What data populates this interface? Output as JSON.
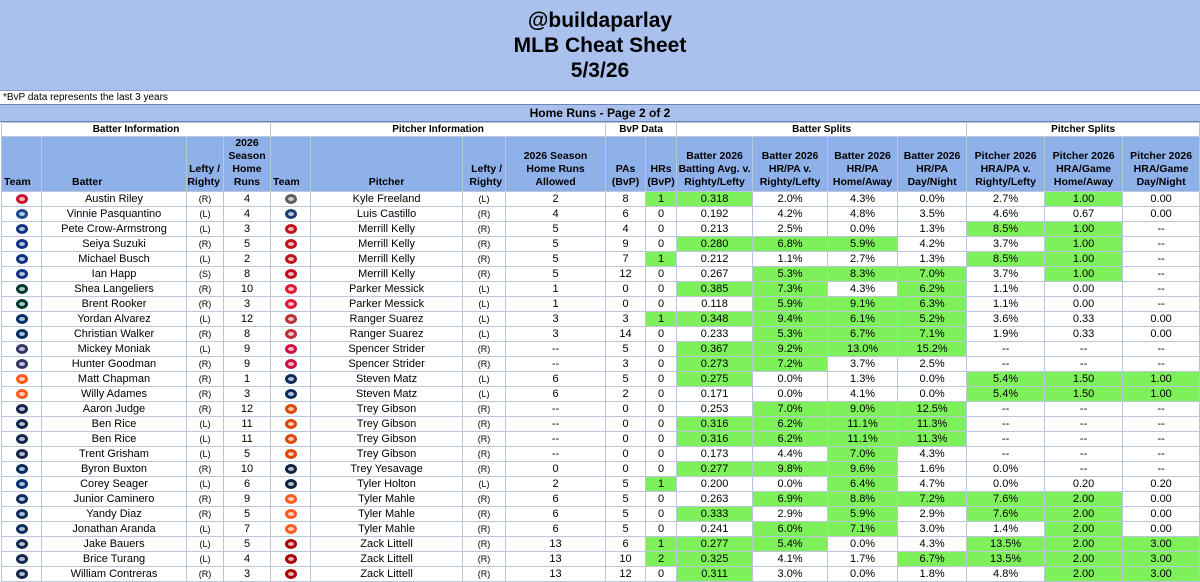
{
  "header": {
    "handle": "@buildaparlay",
    "title": "MLB Cheat Sheet",
    "date": "5/3/26",
    "note": "*BvP data represents the last 3 years",
    "section": "Home Runs - Page 2 of 2"
  },
  "groups": {
    "batter": "Batter Information",
    "pitcher": "Pitcher Information",
    "bvp": "BvP Data",
    "bsplits": "Batter Splits",
    "psplits": "Pitcher Splits"
  },
  "columns": {
    "team": "Team",
    "batter": "Batter",
    "bhand": "Lefty /\nRighty",
    "bhr": "2026 Season\nHome Runs",
    "pteam": "Team",
    "pitcher": "Pitcher",
    "phand": "Lefty /\nRighty",
    "phra": "2026 Season\nHome Runs\nAllowed",
    "pas": "PAs\n(BvP)",
    "hrs": "HRs\n(BvP)",
    "bavg": "Batter 2026\nBatting Avg. v.\nRighty/Lefty",
    "bhrpa": "Batter 2026\nHR/PA v.\nRighty/Lefty",
    "bha": "Batter 2026\nHR/PA\nHome/Away",
    "bdn": "Batter 2026\nHR/PA\nDay/Night",
    "phrapa": "Pitcher 2026\nHRA/PA v.\nRighty/Lefty",
    "pha": "Pitcher 2026\nHRA/Game\nHome/Away",
    "pdn": "Pitcher 2026\nHRA/Game\nDay/Night"
  },
  "colors": {
    "green": "#7ef05a",
    "header_blue": "#a9c1ec",
    "col_blue": "#8fb1ea"
  },
  "rows": [
    {
      "bteam": "#c8102e",
      "batter": "Austin Riley",
      "bh": "(R)",
      "bhr": "4",
      "pteam": "#5e5e5e",
      "pitcher": "Kyle Freeland",
      "ph": "(L)",
      "phr": "2",
      "pa": "8",
      "hr": "1",
      "avg": "0.318",
      "hrpa": "2.0%",
      "ha": "4.3%",
      "dn": "0.0%",
      "phrapa": "2.7%",
      "pha": "1.00",
      "pdn": "0.00",
      "g": [
        "hr",
        "avg",
        "pha"
      ]
    },
    {
      "bteam": "#1a4b8f",
      "batter": "Vinnie Pasquantino",
      "bh": "(L)",
      "bhr": "4",
      "pteam": "#1d3f7a",
      "pitcher": "Luis Castillo",
      "ph": "(R)",
      "phr": "4",
      "pa": "6",
      "hr": "0",
      "avg": "0.192",
      "hrpa": "4.2%",
      "ha": "4.8%",
      "dn": "3.5%",
      "phrapa": "4.6%",
      "pha": "0.67",
      "pdn": "0.00",
      "g": []
    },
    {
      "bteam": "#0e3386",
      "batter": "Pete Crow-Armstrong",
      "bh": "(L)",
      "bhr": "3",
      "pteam": "#c0111f",
      "pitcher": "Merrill Kelly",
      "ph": "(R)",
      "phr": "5",
      "pa": "4",
      "hr": "0",
      "avg": "0.213",
      "hrpa": "2.5%",
      "ha": "0.0%",
      "dn": "1.3%",
      "phrapa": "8.5%",
      "pha": "1.00",
      "pdn": "--",
      "g": [
        "phrapa",
        "pha"
      ]
    },
    {
      "bteam": "#0e3386",
      "batter": "Seiya Suzuki",
      "bh": "(R)",
      "bhr": "5",
      "pteam": "#c0111f",
      "pitcher": "Merrill Kelly",
      "ph": "(R)",
      "phr": "5",
      "pa": "9",
      "hr": "0",
      "avg": "0.280",
      "hrpa": "6.8%",
      "ha": "5.9%",
      "dn": "4.2%",
      "phrapa": "3.7%",
      "pha": "1.00",
      "pdn": "--",
      "g": [
        "avg",
        "hrpa",
        "ha",
        "pha"
      ]
    },
    {
      "bteam": "#0e3386",
      "batter": "Michael Busch",
      "bh": "(L)",
      "bhr": "2",
      "pteam": "#c0111f",
      "pitcher": "Merrill Kelly",
      "ph": "(R)",
      "phr": "5",
      "pa": "7",
      "hr": "1",
      "avg": "0.212",
      "hrpa": "1.1%",
      "ha": "2.7%",
      "dn": "1.3%",
      "phrapa": "8.5%",
      "pha": "1.00",
      "pdn": "--",
      "g": [
        "hr",
        "phrapa",
        "pha"
      ]
    },
    {
      "bteam": "#0e3386",
      "batter": "Ian Happ",
      "bh": "(S)",
      "bhr": "8",
      "pteam": "#c0111f",
      "pitcher": "Merrill Kelly",
      "ph": "(R)",
      "phr": "5",
      "pa": "12",
      "hr": "0",
      "avg": "0.267",
      "hrpa": "5.3%",
      "ha": "8.3%",
      "dn": "7.0%",
      "phrapa": "3.7%",
      "pha": "1.00",
      "pdn": "--",
      "g": [
        "hrpa",
        "ha",
        "dn",
        "pha"
      ]
    },
    {
      "bteam": "#003831",
      "batter": "Shea Langeliers",
      "bh": "(R)",
      "bhr": "10",
      "pteam": "#e31937",
      "pitcher": "Parker Messick",
      "ph": "(L)",
      "phr": "1",
      "pa": "0",
      "hr": "0",
      "avg": "0.385",
      "hrpa": "7.3%",
      "ha": "4.3%",
      "dn": "6.2%",
      "phrapa": "1.1%",
      "pha": "0.00",
      "pdn": "--",
      "g": [
        "avg",
        "hrpa",
        "dn"
      ]
    },
    {
      "bteam": "#003831",
      "batter": "Brent Rooker",
      "bh": "(R)",
      "bhr": "3",
      "pteam": "#e31937",
      "pitcher": "Parker Messick",
      "ph": "(L)",
      "phr": "1",
      "pa": "0",
      "hr": "0",
      "avg": "0.118",
      "hrpa": "5.9%",
      "ha": "9.1%",
      "dn": "6.3%",
      "phrapa": "1.1%",
      "pha": "0.00",
      "pdn": "--",
      "g": [
        "hrpa",
        "ha",
        "dn"
      ]
    },
    {
      "bteam": "#002d62",
      "batter": "Yordan Alvarez",
      "bh": "(L)",
      "bhr": "12",
      "pteam": "#bd3039",
      "pitcher": "Ranger Suarez",
      "ph": "(L)",
      "phr": "3",
      "pa": "3",
      "hr": "1",
      "avg": "0.348",
      "hrpa": "9.4%",
      "ha": "6.1%",
      "dn": "5.2%",
      "phrapa": "3.6%",
      "pha": "0.33",
      "pdn": "0.00",
      "g": [
        "hr",
        "avg",
        "hrpa",
        "ha",
        "dn"
      ]
    },
    {
      "bteam": "#002d62",
      "batter": "Christian Walker",
      "bh": "(R)",
      "bhr": "8",
      "pteam": "#bd3039",
      "pitcher": "Ranger Suarez",
      "ph": "(L)",
      "phr": "3",
      "pa": "14",
      "hr": "0",
      "avg": "0.233",
      "hrpa": "5.3%",
      "ha": "6.7%",
      "dn": "7.1%",
      "phrapa": "1.9%",
      "pha": "0.33",
      "pdn": "0.00",
      "g": [
        "hrpa",
        "ha",
        "dn"
      ]
    },
    {
      "bteam": "#333366",
      "batter": "Mickey Moniak",
      "bh": "(L)",
      "bhr": "9",
      "pteam": "#ce1141",
      "pitcher": "Spencer Strider",
      "ph": "(R)",
      "phr": "--",
      "pa": "5",
      "hr": "0",
      "avg": "0.367",
      "hrpa": "9.2%",
      "ha": "13.0%",
      "dn": "15.2%",
      "phrapa": "--",
      "pha": "--",
      "pdn": "--",
      "g": [
        "avg",
        "hrpa",
        "ha",
        "dn"
      ]
    },
    {
      "bteam": "#333366",
      "batter": "Hunter Goodman",
      "bh": "(R)",
      "bhr": "9",
      "pteam": "#ce1141",
      "pitcher": "Spencer Strider",
      "ph": "(R)",
      "phr": "--",
      "pa": "3",
      "hr": "0",
      "avg": "0.273",
      "hrpa": "7.2%",
      "ha": "3.7%",
      "dn": "2.5%",
      "phrapa": "--",
      "pha": "--",
      "pdn": "--",
      "g": [
        "avg",
        "hrpa"
      ]
    },
    {
      "bteam": "#fd5a1e",
      "batter": "Matt Chapman",
      "bh": "(R)",
      "bhr": "1",
      "pteam": "#092c5c",
      "pitcher": "Steven Matz",
      "ph": "(L)",
      "phr": "6",
      "pa": "5",
      "hr": "0",
      "avg": "0.275",
      "hrpa": "0.0%",
      "ha": "1.3%",
      "dn": "0.0%",
      "phrapa": "5.4%",
      "pha": "1.50",
      "pdn": "1.00",
      "g": [
        "avg",
        "phrapa",
        "pha",
        "pdn"
      ]
    },
    {
      "bteam": "#fd5a1e",
      "batter": "Willy Adames",
      "bh": "(R)",
      "bhr": "3",
      "pteam": "#092c5c",
      "pitcher": "Steven Matz",
      "ph": "(L)",
      "phr": "6",
      "pa": "2",
      "hr": "0",
      "avg": "0.171",
      "hrpa": "0.0%",
      "ha": "4.1%",
      "dn": "0.0%",
      "phrapa": "5.4%",
      "pha": "1.50",
      "pdn": "1.00",
      "g": [
        "phrapa",
        "pha",
        "pdn"
      ]
    },
    {
      "bteam": "#132448",
      "batter": "Aaron Judge",
      "bh": "(R)",
      "bhr": "12",
      "pteam": "#df4601",
      "pitcher": "Trey Gibson",
      "ph": "(R)",
      "phr": "--",
      "pa": "0",
      "hr": "0",
      "avg": "0.253",
      "hrpa": "7.0%",
      "ha": "9.0%",
      "dn": "12.5%",
      "phrapa": "--",
      "pha": "--",
      "pdn": "--",
      "g": [
        "hrpa",
        "ha",
        "dn"
      ]
    },
    {
      "bteam": "#132448",
      "batter": "Ben Rice",
      "bh": "(L)",
      "bhr": "11",
      "pteam": "#df4601",
      "pitcher": "Trey Gibson",
      "ph": "(R)",
      "phr": "--",
      "pa": "0",
      "hr": "0",
      "avg": "0.316",
      "hrpa": "6.2%",
      "ha": "11.1%",
      "dn": "11.3%",
      "phrapa": "--",
      "pha": "--",
      "pdn": "--",
      "g": [
        "avg",
        "hrpa",
        "ha",
        "dn"
      ]
    },
    {
      "bteam": "#132448",
      "batter": "Ben Rice",
      "bh": "(L)",
      "bhr": "11",
      "pteam": "#df4601",
      "pitcher": "Trey Gibson",
      "ph": "(R)",
      "phr": "--",
      "pa": "0",
      "hr": "0",
      "avg": "0.316",
      "hrpa": "6.2%",
      "ha": "11.1%",
      "dn": "11.3%",
      "phrapa": "--",
      "pha": "--",
      "pdn": "--",
      "g": [
        "avg",
        "hrpa",
        "ha",
        "dn"
      ]
    },
    {
      "bteam": "#132448",
      "batter": "Trent Grisham",
      "bh": "(L)",
      "bhr": "5",
      "pteam": "#df4601",
      "pitcher": "Trey Gibson",
      "ph": "(R)",
      "phr": "--",
      "pa": "0",
      "hr": "0",
      "avg": "0.173",
      "hrpa": "4.4%",
      "ha": "7.0%",
      "dn": "4.3%",
      "phrapa": "--",
      "pha": "--",
      "pdn": "--",
      "g": [
        "ha"
      ]
    },
    {
      "bteam": "#002b5c",
      "batter": "Byron Buxton",
      "bh": "(R)",
      "bhr": "10",
      "pteam": "#0c2340",
      "pitcher": "Trey Yesavage",
      "ph": "(R)",
      "phr": "0",
      "pa": "0",
      "hr": "0",
      "avg": "0.277",
      "hrpa": "9.8%",
      "ha": "9.6%",
      "dn": "1.6%",
      "phrapa": "0.0%",
      "pha": "--",
      "pdn": "--",
      "g": [
        "avg",
        "hrpa",
        "ha"
      ]
    },
    {
      "bteam": "#003278",
      "batter": "Corey Seager",
      "bh": "(L)",
      "bhr": "6",
      "pteam": "#0c2340",
      "pitcher": "Tyler Holton",
      "ph": "(L)",
      "phr": "2",
      "pa": "5",
      "hr": "1",
      "avg": "0.200",
      "hrpa": "0.0%",
      "ha": "6.4%",
      "dn": "4.7%",
      "phrapa": "0.0%",
      "pha": "0.20",
      "pdn": "0.20",
      "g": [
        "hr",
        "ha"
      ]
    },
    {
      "bteam": "#092c5c",
      "batter": "Junior Caminero",
      "bh": "(R)",
      "bhr": "9",
      "pteam": "#fd5a1e",
      "pitcher": "Tyler Mahle",
      "ph": "(R)",
      "phr": "6",
      "pa": "5",
      "hr": "0",
      "avg": "0.263",
      "hrpa": "6.9%",
      "ha": "8.8%",
      "dn": "7.2%",
      "phrapa": "7.6%",
      "pha": "2.00",
      "pdn": "0.00",
      "g": [
        "hrpa",
        "ha",
        "dn",
        "phrapa",
        "pha"
      ]
    },
    {
      "bteam": "#092c5c",
      "batter": "Yandy Diaz",
      "bh": "(R)",
      "bhr": "5",
      "pteam": "#fd5a1e",
      "pitcher": "Tyler Mahle",
      "ph": "(R)",
      "phr": "6",
      "pa": "5",
      "hr": "0",
      "avg": "0.333",
      "hrpa": "2.9%",
      "ha": "5.9%",
      "dn": "2.9%",
      "phrapa": "7.6%",
      "pha": "2.00",
      "pdn": "0.00",
      "g": [
        "avg",
        "ha",
        "phrapa",
        "pha"
      ]
    },
    {
      "bteam": "#092c5c",
      "batter": "Jonathan Aranda",
      "bh": "(L)",
      "bhr": "7",
      "pteam": "#fd5a1e",
      "pitcher": "Tyler Mahle",
      "ph": "(R)",
      "phr": "6",
      "pa": "5",
      "hr": "0",
      "avg": "0.241",
      "hrpa": "6.0%",
      "ha": "7.1%",
      "dn": "3.0%",
      "phrapa": "1.4%",
      "pha": "2.00",
      "pdn": "0.00",
      "g": [
        "hrpa",
        "ha",
        "pha"
      ]
    },
    {
      "bteam": "#12284b",
      "batter": "Jake Bauers",
      "bh": "(L)",
      "bhr": "5",
      "pteam": "#ab0003",
      "pitcher": "Zack Littell",
      "ph": "(R)",
      "phr": "13",
      "pa": "6",
      "hr": "1",
      "avg": "0.277",
      "hrpa": "5.4%",
      "ha": "0.0%",
      "dn": "4.3%",
      "phrapa": "13.5%",
      "pha": "2.00",
      "pdn": "3.00",
      "g": [
        "hr",
        "avg",
        "hrpa",
        "phrapa",
        "pha",
        "pdn"
      ]
    },
    {
      "bteam": "#12284b",
      "batter": "Brice Turang",
      "bh": "(L)",
      "bhr": "4",
      "pteam": "#ab0003",
      "pitcher": "Zack Littell",
      "ph": "(R)",
      "phr": "13",
      "pa": "10",
      "hr": "2",
      "avg": "0.325",
      "hrpa": "4.1%",
      "ha": "1.7%",
      "dn": "6.7%",
      "phrapa": "13.5%",
      "pha": "2.00",
      "pdn": "3.00",
      "g": [
        "hr",
        "avg",
        "dn",
        "phrapa",
        "pha",
        "pdn"
      ]
    },
    {
      "bteam": "#12284b",
      "batter": "William Contreras",
      "bh": "(R)",
      "bhr": "3",
      "pteam": "#ab0003",
      "pitcher": "Zack Littell",
      "ph": "(R)",
      "phr": "13",
      "pa": "12",
      "hr": "0",
      "avg": "0.311",
      "hrpa": "3.0%",
      "ha": "0.0%",
      "dn": "1.8%",
      "phrapa": "4.8%",
      "pha": "2.00",
      "pdn": "3.00",
      "g": [
        "avg",
        "pha",
        "pdn"
      ]
    }
  ]
}
